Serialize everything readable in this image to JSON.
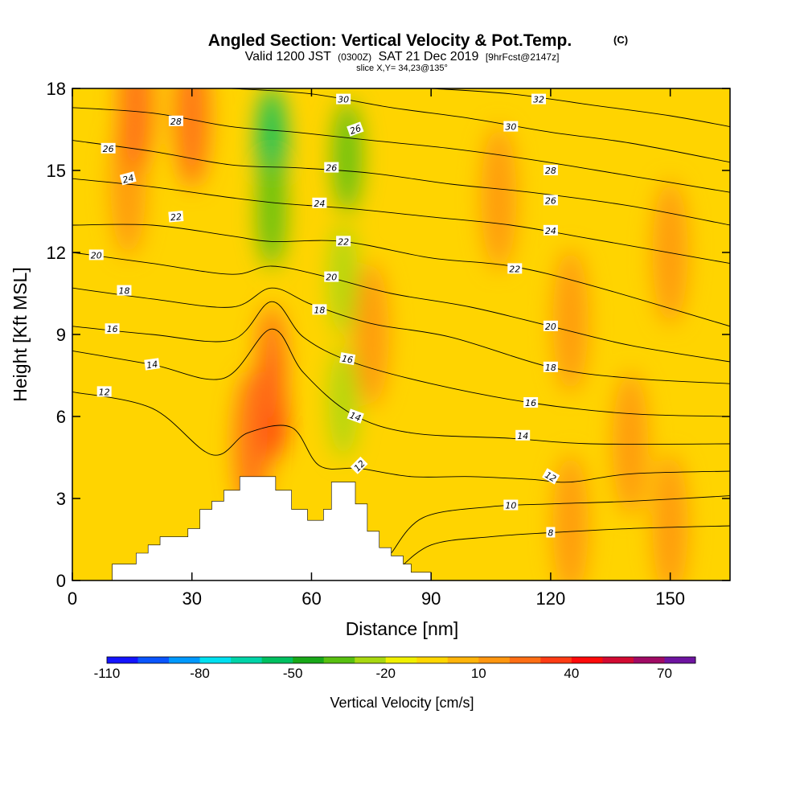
{
  "chart_data": {
    "type": "heatmap",
    "title": "Angled Section: Vertical Velocity & Pot.Temp.",
    "title_unit": "(C)",
    "subtitle_parts": [
      "Valid 1200 JST",
      "(0300Z)",
      "SAT 21 Dec 2019",
      "[9hrFcst@2147z]"
    ],
    "slice_label": "slice X,Y= 34,23@135°",
    "xlabel": "Distance [nm]",
    "ylabel": "Height [Kft MSL]",
    "xlim": [
      0,
      165
    ],
    "ylim": [
      0,
      18
    ],
    "x_ticks": [
      0,
      30,
      60,
      90,
      120,
      150
    ],
    "y_ticks": [
      0,
      3,
      6,
      9,
      12,
      15,
      18
    ],
    "colorbar": {
      "label": "Vertical Velocity [cm/s]",
      "tick_labels": [
        "-110",
        "-80",
        "-50",
        "-20",
        "10",
        "40",
        "70"
      ],
      "tick_values": [
        -110,
        -80,
        -50,
        -20,
        10,
        40,
        70
      ],
      "range": [
        -110,
        80
      ],
      "colors": [
        "#1414ff",
        "#0a55ff",
        "#0099ff",
        "#00e0f0",
        "#00d4a8",
        "#00c060",
        "#18a818",
        "#58c010",
        "#a8d810",
        "#f0f000",
        "#ffd600",
        "#ffb40a",
        "#ff960f",
        "#ff6e14",
        "#ff3c14",
        "#ff0a0a",
        "#d20a32",
        "#a00a64",
        "#6e14a0"
      ]
    },
    "terrain": {
      "x": [
        0,
        10,
        10,
        16,
        16,
        19,
        19,
        22,
        22,
        29,
        29,
        32,
        32,
        35,
        35,
        38,
        38,
        42,
        42,
        48,
        48,
        51,
        51,
        55,
        55,
        59,
        59,
        63,
        63,
        65,
        65,
        71,
        71,
        74,
        74,
        77,
        77,
        80,
        80,
        83,
        83,
        85,
        85,
        90,
        90,
        165
      ],
      "y": [
        0,
        0,
        0.6,
        0.6,
        1.0,
        1.0,
        1.3,
        1.3,
        1.6,
        1.6,
        1.9,
        1.9,
        2.6,
        2.6,
        2.9,
        2.9,
        3.3,
        3.3,
        3.8,
        3.8,
        3.8,
        3.8,
        3.3,
        3.3,
        2.6,
        2.6,
        2.2,
        2.2,
        2.6,
        2.6,
        3.6,
        3.6,
        2.8,
        2.8,
        1.8,
        1.8,
        1.2,
        1.2,
        0.9,
        0.9,
        0.6,
        0.6,
        0.3,
        0.3,
        0,
        0
      ]
    },
    "wind_cells": [
      {
        "x": 50,
        "y": 6.4,
        "value": 40
      },
      {
        "x": 50,
        "y": 8.0,
        "value": 25
      },
      {
        "x": 45,
        "y": 5.0,
        "value": 22
      },
      {
        "x": 14,
        "y": 14.5,
        "value": 17
      },
      {
        "x": 16,
        "y": 17.5,
        "value": 22
      },
      {
        "x": 30,
        "y": 17.0,
        "value": 22
      },
      {
        "x": 50,
        "y": 16.0,
        "value": -60
      },
      {
        "x": 50,
        "y": 13.5,
        "value": -35
      },
      {
        "x": 69,
        "y": 15.5,
        "value": -40
      },
      {
        "x": 68,
        "y": 11.0,
        "value": -30
      },
      {
        "x": 68,
        "y": 6.5,
        "value": -25
      },
      {
        "x": 75,
        "y": 9.0,
        "value": 12
      },
      {
        "x": 107,
        "y": 14.0,
        "value": 12
      },
      {
        "x": 125,
        "y": 9.5,
        "value": 10
      },
      {
        "x": 140,
        "y": 5.0,
        "value": 10
      },
      {
        "x": 150,
        "y": 12.0,
        "value": 10
      },
      {
        "x": 150,
        "y": 2.0,
        "value": 12
      },
      {
        "x": 125,
        "y": 2.0,
        "value": 10
      }
    ],
    "isentropes": [
      {
        "level": 8,
        "points": [
          [
            81,
            0.3
          ],
          [
            90,
            1.3
          ],
          [
            105,
            1.6
          ],
          [
            120,
            1.75
          ],
          [
            140,
            1.9
          ],
          [
            165,
            2.0
          ]
        ]
      },
      {
        "level": 10,
        "points": [
          [
            80,
            1.0
          ],
          [
            88,
            2.3
          ],
          [
            105,
            2.7
          ],
          [
            120,
            2.8
          ],
          [
            140,
            2.9
          ],
          [
            165,
            3.1
          ]
        ]
      },
      {
        "level": 12,
        "points": [
          [
            0,
            6.9
          ],
          [
            20,
            6.3
          ],
          [
            35,
            4.6
          ],
          [
            44,
            5.4
          ],
          [
            55,
            5.6
          ],
          [
            62,
            4.2
          ],
          [
            72,
            4.1
          ],
          [
            85,
            3.8
          ],
          [
            100,
            3.8
          ],
          [
            115,
            3.7
          ],
          [
            125,
            3.6
          ],
          [
            140,
            3.9
          ],
          [
            165,
            4.0
          ]
        ]
      },
      {
        "level": 14,
        "points": [
          [
            0,
            8.4
          ],
          [
            20,
            7.9
          ],
          [
            38,
            7.4
          ],
          [
            50,
            9.2
          ],
          [
            58,
            7.6
          ],
          [
            70,
            6.1
          ],
          [
            85,
            5.4
          ],
          [
            110,
            5.2
          ],
          [
            130,
            5.0
          ],
          [
            165,
            5.0
          ]
        ]
      },
      {
        "level": 16,
        "points": [
          [
            0,
            9.3
          ],
          [
            20,
            9.0
          ],
          [
            40,
            8.8
          ],
          [
            50,
            10.2
          ],
          [
            58,
            8.9
          ],
          [
            70,
            8.0
          ],
          [
            90,
            7.2
          ],
          [
            115,
            6.5
          ],
          [
            140,
            6.1
          ],
          [
            165,
            6.0
          ]
        ]
      },
      {
        "level": 18,
        "points": [
          [
            0,
            10.7
          ],
          [
            20,
            10.3
          ],
          [
            40,
            10.0
          ],
          [
            50,
            10.7
          ],
          [
            60,
            10.1
          ],
          [
            75,
            9.4
          ],
          [
            95,
            8.9
          ],
          [
            120,
            7.8
          ],
          [
            140,
            7.4
          ],
          [
            165,
            7.2
          ]
        ]
      },
      {
        "level": 20,
        "points": [
          [
            0,
            12.0
          ],
          [
            20,
            11.6
          ],
          [
            40,
            11.2
          ],
          [
            50,
            11.5
          ],
          [
            64,
            11.1
          ],
          [
            80,
            10.5
          ],
          [
            100,
            10.0
          ],
          [
            120,
            9.3
          ],
          [
            140,
            8.6
          ],
          [
            165,
            8.0
          ]
        ]
      },
      {
        "level": 22,
        "points": [
          [
            0,
            13.0
          ],
          [
            20,
            13.0
          ],
          [
            40,
            12.6
          ],
          [
            50,
            12.4
          ],
          [
            68,
            12.4
          ],
          [
            90,
            11.8
          ],
          [
            110,
            11.5
          ],
          [
            130,
            10.8
          ],
          [
            165,
            9.3
          ]
        ]
      },
      {
        "level": 24,
        "points": [
          [
            0,
            14.7
          ],
          [
            20,
            14.4
          ],
          [
            40,
            14.0
          ],
          [
            52,
            13.8
          ],
          [
            70,
            13.6
          ],
          [
            90,
            13.3
          ],
          [
            110,
            13.0
          ],
          [
            130,
            12.5
          ],
          [
            165,
            11.6
          ]
        ]
      },
      {
        "level": 26,
        "points": [
          [
            0,
            16.1
          ],
          [
            20,
            15.7
          ],
          [
            40,
            15.2
          ],
          [
            56,
            15.1
          ],
          [
            75,
            14.9
          ],
          [
            95,
            14.5
          ],
          [
            115,
            14.2
          ],
          [
            140,
            13.7
          ],
          [
            165,
            13.0
          ]
        ]
      },
      {
        "level": 28,
        "points": [
          [
            0,
            17.3
          ],
          [
            20,
            17.1
          ],
          [
            40,
            16.6
          ],
          [
            56,
            16.4
          ],
          [
            75,
            16.1
          ],
          [
            95,
            15.8
          ],
          [
            115,
            15.4
          ],
          [
            140,
            14.8
          ],
          [
            165,
            14.2
          ]
        ]
      },
      {
        "level": 30,
        "points": [
          [
            40,
            18.0
          ],
          [
            60,
            17.8
          ],
          [
            80,
            17.3
          ],
          [
            100,
            16.9
          ],
          [
            120,
            16.4
          ],
          [
            140,
            16.0
          ],
          [
            165,
            15.3
          ]
        ]
      },
      {
        "level": 32,
        "points": [
          [
            90,
            18.0
          ],
          [
            110,
            17.8
          ],
          [
            130,
            17.4
          ],
          [
            150,
            17.0
          ],
          [
            165,
            16.6
          ]
        ]
      }
    ],
    "contour_labels": [
      {
        "text": "8",
        "x": 120,
        "y": 1.75,
        "angle": 0
      },
      {
        "text": "10",
        "x": 110,
        "y": 2.75,
        "angle": 0
      },
      {
        "text": "12",
        "x": 8,
        "y": 6.9,
        "angle": 0
      },
      {
        "text": "12",
        "x": 72,
        "y": 4.2,
        "angle": -45
      },
      {
        "text": "12",
        "x": 120,
        "y": 3.8,
        "angle": 30
      },
      {
        "text": "14",
        "x": 20,
        "y": 7.9,
        "angle": -8
      },
      {
        "text": "14",
        "x": 71,
        "y": 6.0,
        "angle": 20
      },
      {
        "text": "14",
        "x": 113,
        "y": 5.3,
        "angle": 0
      },
      {
        "text": "16",
        "x": 10,
        "y": 9.2,
        "angle": 0
      },
      {
        "text": "16",
        "x": 69,
        "y": 8.1,
        "angle": 10
      },
      {
        "text": "16",
        "x": 115,
        "y": 6.5,
        "angle": 0
      },
      {
        "text": "18",
        "x": 13,
        "y": 10.6,
        "angle": 0
      },
      {
        "text": "18",
        "x": 62,
        "y": 9.9,
        "angle": 0
      },
      {
        "text": "18",
        "x": 120,
        "y": 7.8,
        "angle": 0
      },
      {
        "text": "20",
        "x": 6,
        "y": 11.9,
        "angle": 0
      },
      {
        "text": "20",
        "x": 65,
        "y": 11.1,
        "angle": 0
      },
      {
        "text": "20",
        "x": 120,
        "y": 9.3,
        "angle": 0
      },
      {
        "text": "22",
        "x": 26,
        "y": 13.3,
        "angle": -5
      },
      {
        "text": "22",
        "x": 68,
        "y": 12.4,
        "angle": 0
      },
      {
        "text": "22",
        "x": 111,
        "y": 11.4,
        "angle": 0
      },
      {
        "text": "24",
        "x": 14,
        "y": 14.7,
        "angle": -15
      },
      {
        "text": "24",
        "x": 62,
        "y": 13.8,
        "angle": 0
      },
      {
        "text": "24",
        "x": 120,
        "y": 12.8,
        "angle": 0
      },
      {
        "text": "26",
        "x": 9,
        "y": 15.8,
        "angle": 0
      },
      {
        "text": "26",
        "x": 65,
        "y": 15.1,
        "angle": 0
      },
      {
        "text": "26",
        "x": 71,
        "y": 16.5,
        "angle": -20
      },
      {
        "text": "26",
        "x": 120,
        "y": 13.9,
        "angle": 0
      },
      {
        "text": "28",
        "x": 26,
        "y": 16.8,
        "angle": 0
      },
      {
        "text": "28",
        "x": 120,
        "y": 15.0,
        "angle": 0
      },
      {
        "text": "30",
        "x": 68,
        "y": 17.6,
        "angle": 0
      },
      {
        "text": "30",
        "x": 110,
        "y": 16.6,
        "angle": 0
      },
      {
        "text": "32",
        "x": 117,
        "y": 17.6,
        "angle": 0
      }
    ]
  }
}
